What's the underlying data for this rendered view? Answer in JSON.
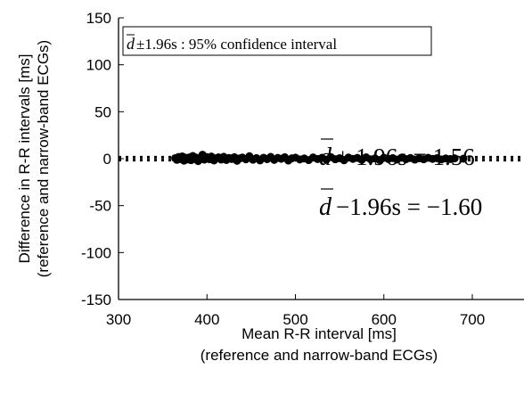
{
  "chart_data": {
    "type": "scatter",
    "title": "",
    "xlabel": [
      "Mean R-R interval  [ms]",
      "(reference and narrow-band ECGs)"
    ],
    "ylabel": [
      "Difference in R-R intervals [ms]",
      "(reference and narrow-band ECGs)"
    ],
    "xlim": [
      300,
      750
    ],
    "ylim": [
      -150,
      150
    ],
    "xticks": [
      "300",
      "400",
      "500",
      "600",
      "700"
    ],
    "yticks": [
      "150",
      "100",
      "50",
      "0",
      "-50",
      "-100",
      "-150"
    ],
    "grid": false,
    "legend": {
      "d": "d",
      "text": "±1.96s : 95% confidence  interval",
      "placement": "top-left"
    },
    "reference_lines": [
      {
        "label_d": "d",
        "label_rest": "+ 1.96s = 1.56",
        "y": 1.56,
        "style": "dotted"
      },
      {
        "label_d": "d",
        "label_rest": "−1.96s = −1.60",
        "y": -1.6,
        "style": "dotted"
      }
    ],
    "points": {
      "x": [
        364,
        366,
        368,
        370,
        372,
        374,
        376,
        378,
        380,
        382,
        384,
        386,
        388,
        390,
        393,
        395,
        397,
        400,
        403,
        405,
        408,
        410,
        413,
        416,
        419,
        422,
        425,
        428,
        431,
        434,
        437,
        440,
        444,
        448,
        452,
        456,
        460,
        464,
        468,
        472,
        476,
        480,
        484,
        488,
        492,
        496,
        500,
        505,
        510,
        515,
        520,
        525,
        530,
        535,
        540,
        545,
        550,
        555,
        560,
        565,
        570,
        575,
        580,
        585,
        590,
        595,
        600,
        605,
        610,
        615,
        620,
        625,
        630,
        635,
        640,
        645,
        650,
        655,
        660,
        665,
        670,
        675,
        680,
        690
      ],
      "y": [
        0.5,
        -1.2,
        1.8,
        -0.4,
        2.4,
        -2.1,
        0.9,
        -0.8,
        1.3,
        -1.6,
        2.8,
        -0.2,
        1.1,
        -2.6,
        0.4,
        4.2,
        -1.0,
        1.7,
        -0.6,
        2.2,
        -1.9,
        0.3,
        1.4,
        -0.9,
        2.0,
        -1.4,
        0.7,
        -0.3,
        1.6,
        -2.2,
        0.2,
        1.2,
        -0.7,
        2.6,
        -1.1,
        0.6,
        -1.8,
        1.0,
        -0.5,
        1.9,
        -1.3,
        0.8,
        -0.1,
        1.5,
        -2.0,
        0.4,
        1.1,
        -0.8,
        0.2,
        -1.5,
        1.3,
        -0.4,
        0.9,
        -1.1,
        1.7,
        -0.6,
        0.5,
        -1.7,
        1.2,
        -0.2,
        0.8,
        -1.2,
        1.4,
        -0.7,
        0.3,
        -1.4,
        1.0,
        -0.3,
        0.6,
        -0.9,
        1.1,
        -0.5,
        0.7,
        -1.0,
        0.4,
        -0.6,
        0.9,
        -0.2,
        0.5,
        -0.8,
        0.2,
        -0.4,
        0.3,
        0.0
      ]
    },
    "marker_color": "#000000"
  }
}
